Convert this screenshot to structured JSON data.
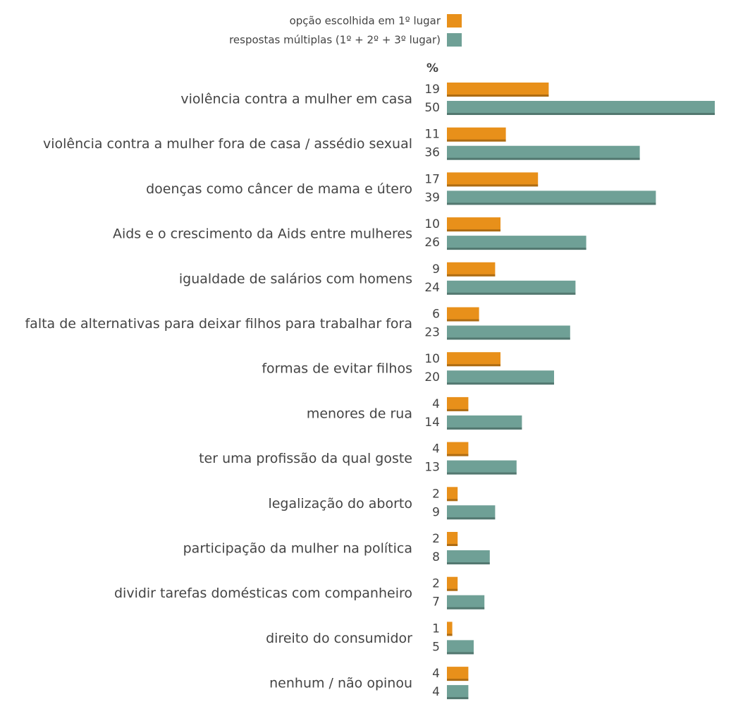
{
  "chart_data": {
    "type": "bar",
    "orientation": "horizontal",
    "unit": "%",
    "categories": [
      "violência contra a mulher em casa",
      "violência contra a mulher fora de casa / assédio sexual",
      "doenças como câncer de mama e útero",
      "Aids e o crescimento da Aids entre mulheres",
      "igualdade de salários com homens",
      "falta de alternativas para deixar filhos para trabalhar fora",
      "formas de evitar filhos",
      "menores de rua",
      "ter uma profissão da qual goste",
      "legalização do aborto",
      "participação da mulher na política",
      "dividir tarefas domésticas com companheiro",
      "direito do consumidor",
      "nenhum / não opinou"
    ],
    "series": [
      {
        "name": "opção escolhida em 1º lugar",
        "color": "#e8901a",
        "values": [
          19,
          11,
          17,
          10,
          9,
          6,
          10,
          4,
          4,
          2,
          2,
          2,
          1,
          4
        ]
      },
      {
        "name": "respostas múltiplas (1º + 2º + 3º lugar)",
        "color": "#6fa096",
        "values": [
          50,
          36,
          39,
          26,
          24,
          23,
          20,
          14,
          13,
          9,
          8,
          7,
          5,
          4
        ]
      }
    ]
  }
}
